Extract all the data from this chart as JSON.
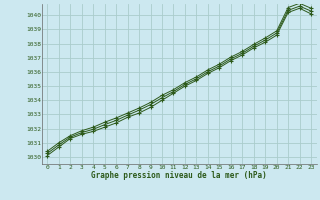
{
  "xlabel": "Graphe pression niveau de la mer (hPa)",
  "bg_color": "#cce8f0",
  "grid_color": "#aacccc",
  "line_color": "#2d5a1b",
  "xlim": [
    -0.5,
    23.5
  ],
  "ylim": [
    1029.5,
    1040.8
  ],
  "xticks": [
    0,
    1,
    2,
    3,
    4,
    5,
    6,
    7,
    8,
    9,
    10,
    11,
    12,
    13,
    14,
    15,
    16,
    17,
    18,
    19,
    20,
    21,
    22,
    23
  ],
  "yticks": [
    1030,
    1031,
    1032,
    1033,
    1034,
    1035,
    1036,
    1037,
    1038,
    1039,
    1040
  ],
  "series": [
    [
      1030.1,
      1030.7,
      1031.3,
      1031.6,
      1031.8,
      1032.1,
      1032.4,
      1032.8,
      1033.1,
      1033.5,
      1034.0,
      1034.5,
      1035.0,
      1035.4,
      1035.9,
      1036.3,
      1036.8,
      1037.2,
      1037.7,
      1038.1,
      1038.6,
      1040.2,
      1040.5,
      1040.1
    ],
    [
      1030.4,
      1031.0,
      1031.5,
      1031.85,
      1032.1,
      1032.45,
      1032.75,
      1033.1,
      1033.45,
      1033.85,
      1034.35,
      1034.75,
      1035.25,
      1035.65,
      1036.15,
      1036.55,
      1037.05,
      1037.45,
      1037.95,
      1038.4,
      1038.9,
      1040.55,
      1040.85,
      1040.5
    ],
    [
      1030.25,
      1030.85,
      1031.4,
      1031.72,
      1031.95,
      1032.28,
      1032.58,
      1032.95,
      1033.3,
      1033.7,
      1034.18,
      1034.62,
      1035.12,
      1035.52,
      1036.02,
      1036.42,
      1036.92,
      1037.32,
      1037.82,
      1038.25,
      1038.75,
      1040.35,
      1040.65,
      1040.3
    ]
  ]
}
